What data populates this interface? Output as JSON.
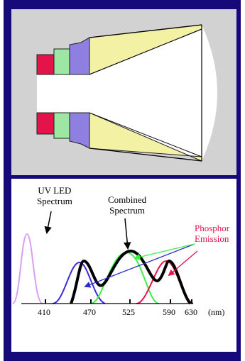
{
  "labels": {
    "uv_led": [
      "UV LED",
      "Spectrum"
    ],
    "combined": [
      "Combined",
      "Spectrum"
    ],
    "phosphor": [
      "Phosphor",
      "Emission"
    ]
  },
  "axis": {
    "ticks": [
      "410",
      "470",
      "525",
      "590",
      "630"
    ],
    "unit": "(nm)"
  },
  "colors": {
    "frame": "#16097a",
    "top_panel": "#d2d2d2",
    "cone_fill": "#f3f1a3",
    "red_phosphor": "#e4134a",
    "green_phosphor": "#9de6a3",
    "blue_phosphor": "#8f7fe0",
    "uv_curve": "#d7a0f0",
    "phosphor_label": "#e4134a"
  }
}
